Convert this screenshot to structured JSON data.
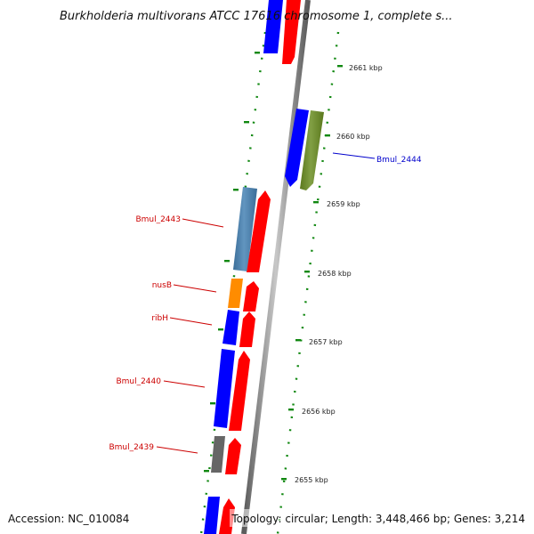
{
  "title": "Burkholderia multivorans ATCC 17616 chromosome 1, complete s...",
  "footer": {
    "accession": "Accession: NC_010084",
    "topology": "Topology: circular; Length: 3,448,466 bp; Genes: 3,214"
  },
  "ticks": [
    {
      "label": "2661 kbp",
      "kbp": 2661
    },
    {
      "label": "2660 kbp",
      "kbp": 2660
    },
    {
      "label": "2659 kbp",
      "kbp": 2659
    },
    {
      "label": "2658 kbp",
      "kbp": 2658
    },
    {
      "label": "2657 kbp",
      "kbp": 2657
    },
    {
      "label": "2656 kbp",
      "kbp": 2656
    },
    {
      "label": "2655 kbp",
      "kbp": 2655
    }
  ],
  "labels": [
    {
      "text": "Bmul_2444",
      "color": "#0000cc"
    },
    {
      "text": "Bmul_2443",
      "color": "#cc0000"
    },
    {
      "text": "nusB",
      "color": "#cc0000"
    },
    {
      "text": "ribH",
      "color": "#cc0000"
    },
    {
      "text": "Bmul_2440",
      "color": "#cc0000"
    },
    {
      "text": "Bmul_2439",
      "color": "#cc0000"
    }
  ],
  "colors": {
    "backbone": "#8a8a8a",
    "tick": "#118811",
    "forward_cds": "#ff0000",
    "reverse_cds": "#0000ff",
    "bmul_2444": "#6b8e23",
    "bmul_2443": "#4682b4",
    "nusb": "#ff8c00",
    "bmul_2439": "#666666"
  }
}
